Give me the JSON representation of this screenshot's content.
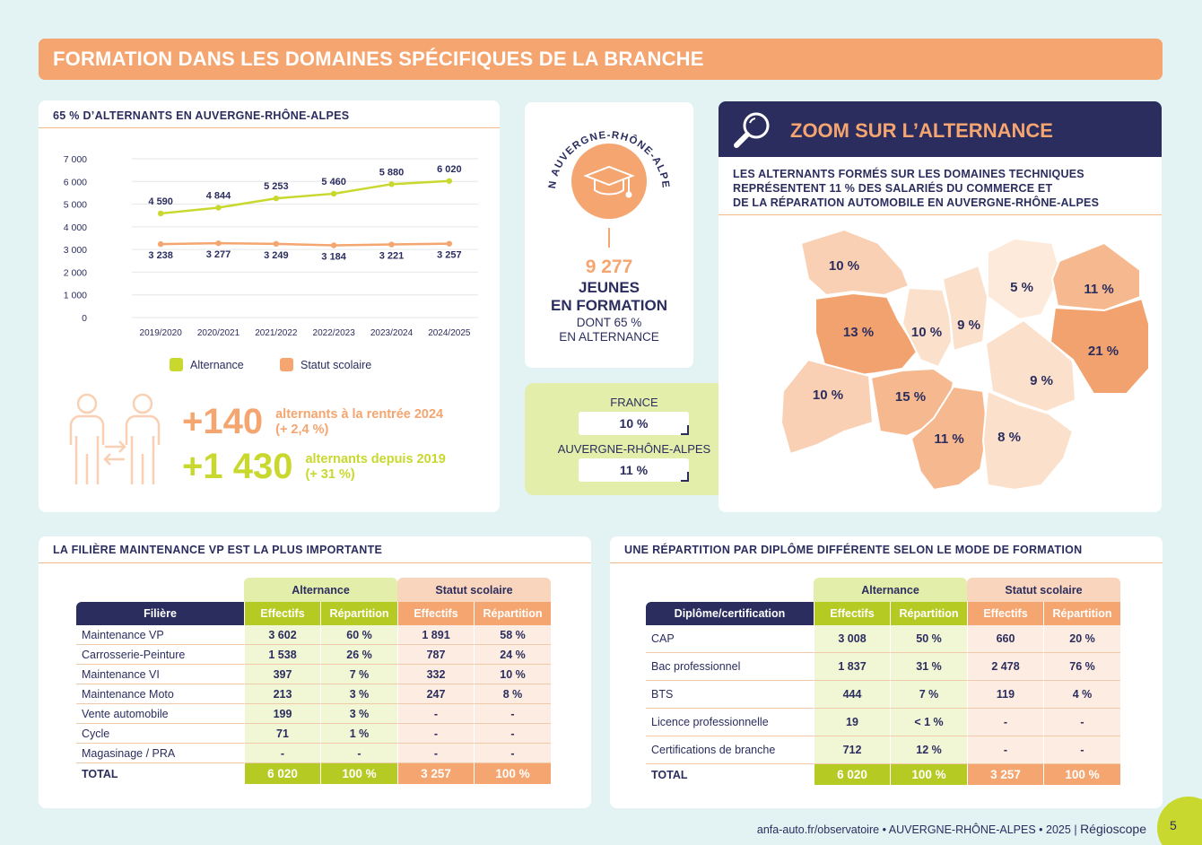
{
  "banner": {
    "title": "FORMATION DANS LES DOMAINES SPÉCIFIQUES DE LA BRANCHE"
  },
  "colors": {
    "orange": "#f5a56f",
    "green": "#b5cb23",
    "navy": "#2b2d5e"
  },
  "chart_section": {
    "title": "65 % D’ALTERNANTS EN AUVERGNE-RHÔNE-ALPES"
  },
  "chart_data": {
    "type": "line",
    "categories": [
      "2019/2020",
      "2020/2021",
      "2021/2022",
      "2022/2023",
      "2023/2024",
      "2024/2025"
    ],
    "yticks": [
      "7 000",
      "6 000",
      "5 000",
      "4 000",
      "3 000",
      "2 000",
      "1 000",
      "0"
    ],
    "ylim": [
      0,
      7000
    ],
    "grid": true,
    "legend_position": "bottom",
    "series": [
      {
        "name": "Alternance",
        "values": [
          4590,
          4844,
          5253,
          5460,
          5880,
          6020
        ],
        "labels": [
          "4 590",
          "4 844",
          "5 253",
          "5 460",
          "5 880",
          "6 020"
        ],
        "color": "#c9d82e"
      },
      {
        "name": "Statut scolaire",
        "values": [
          3238,
          3277,
          3249,
          3184,
          3221,
          3257
        ],
        "labels": [
          "3 238",
          "3 277",
          "3 249",
          "3 184",
          "3 221",
          "3 257"
        ],
        "color": "#f5a56f"
      }
    ]
  },
  "stats": [
    {
      "big": "+140",
      "desc1": "alternants à la rentrée 2024",
      "desc2": "(+ 2,4 %)"
    },
    {
      "big": "+1 430",
      "desc1": "alternants depuis 2019",
      "desc2": "(+ 31 %)"
    }
  ],
  "center": {
    "arc_text": "EN AUVERGNE-RHÔNE-ALPES",
    "icon": "graduation-cap-icon",
    "number": "9 277",
    "line1": "JEUNES",
    "line2": "EN FORMATION",
    "line3": "DONT 65 %",
    "line4": "EN ALTERNANCE"
  },
  "compare": {
    "france_label": "FRANCE",
    "france_value": "10 %",
    "region_label": "AUVERGNE-RHÔNE-ALPES",
    "region_value": "11 %"
  },
  "zoom": {
    "title": "ZOOM SUR L’ALTERNANCE",
    "icon": "magnifier-icon",
    "desc1": "LES ALTERNANTS FORMÉS SUR LES DOMAINES TECHNIQUES",
    "desc2": "REPRÉSENTENT 11 % DES SALARIÉS DU COMMERCE ET",
    "desc3": "DE LA RÉPARATION AUTOMOBILE EN AUVERGNE-RHÔNE-ALPES",
    "departments": [
      "10 %",
      "13 %",
      "10 %",
      "9 %",
      "5 %",
      "11 %",
      "21 %",
      "9 %",
      "10 %",
      "15 %",
      "11 %",
      "8 %"
    ]
  },
  "table1": {
    "title": "LA FILIÈRE MAINTENANCE VP EST LA PLUS IMPORTANTE",
    "group_alt": "Alternance",
    "group_sco": "Statut scolaire",
    "headers": [
      "Filière",
      "Effectifs",
      "Répartition",
      "Effectifs",
      "Répartition"
    ],
    "rows": [
      [
        "Maintenance VP",
        "3 602",
        "60 %",
        "1 891",
        "58 %"
      ],
      [
        "Carrosserie-Peinture",
        "1 538",
        "26 %",
        "787",
        "24 %"
      ],
      [
        "Maintenance VI",
        "397",
        "7 %",
        "332",
        "10 %"
      ],
      [
        "Maintenance Moto",
        "213",
        "3 %",
        "247",
        "8 %"
      ],
      [
        "Vente automobile",
        "199",
        "3 %",
        "-",
        "-"
      ],
      [
        "Cycle",
        "71",
        "1 %",
        "-",
        "-"
      ],
      [
        "Magasinage / PRA",
        "-",
        "-",
        "-",
        "-"
      ]
    ],
    "total": [
      "TOTAL",
      "6 020",
      "100 %",
      "3 257",
      "100 %"
    ]
  },
  "table2": {
    "title": "UNE RÉPARTITION PAR DIPLÔME DIFFÉRENTE SELON LE MODE DE FORMATION",
    "group_alt": "Alternance",
    "group_sco": "Statut scolaire",
    "headers": [
      "Diplôme/certification",
      "Effectifs",
      "Répartition",
      "Effectifs",
      "Répartition"
    ],
    "rows": [
      [
        "CAP",
        "3 008",
        "50 %",
        "660",
        "20 %"
      ],
      [
        "Bac professionnel",
        "1 837",
        "31 %",
        "2 478",
        "76 %"
      ],
      [
        "BTS",
        "444",
        "7 %",
        "119",
        "4 %"
      ],
      [
        "Licence professionnelle",
        "19",
        "< 1 %",
        "-",
        "-"
      ],
      [
        "Certifications de branche",
        "712",
        "12 %",
        "-",
        "-"
      ]
    ],
    "total": [
      "TOTAL",
      "6 020",
      "100 %",
      "3 257",
      "100 %"
    ]
  },
  "footer": {
    "url": "anfa-auto.fr/observatoire",
    "region": "AUVERGNE-RHÔNE-ALPES",
    "year": "2025",
    "brand": "Régioscope",
    "page": "5"
  }
}
